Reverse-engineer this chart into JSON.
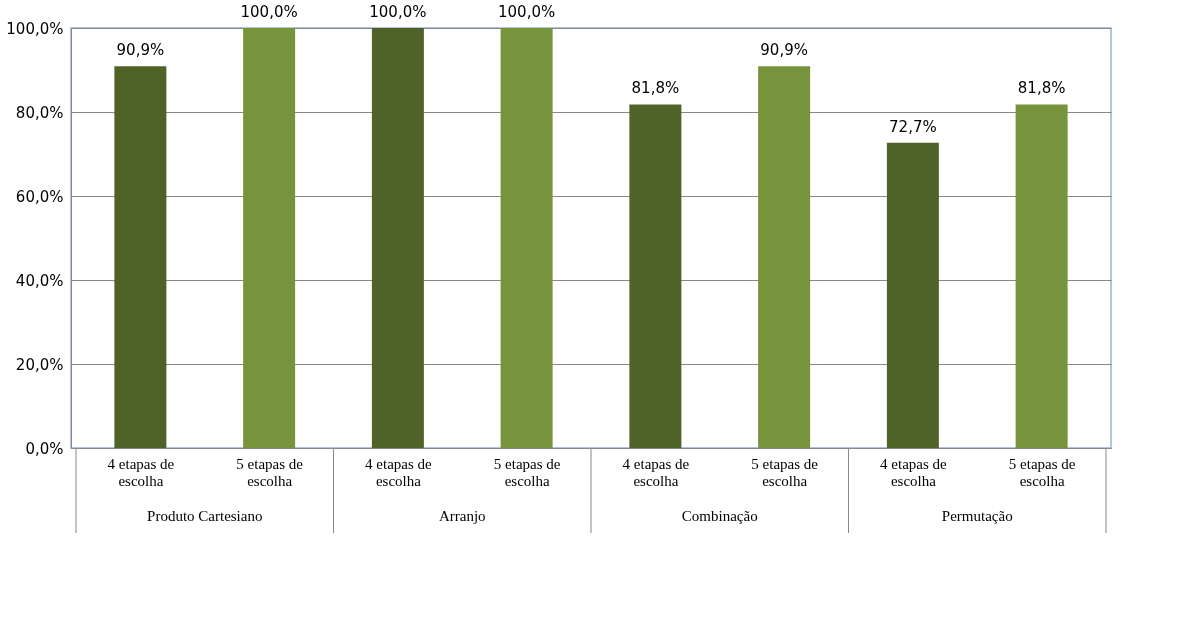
{
  "chart_data": {
    "type": "bar",
    "categories": [
      "4 etapas de escolha",
      "5 etapas de escolha",
      "4 etapas de escolha",
      "5 etapas de escolha",
      "4 etapas de escolha",
      "5 etapas de escolha",
      "4 etapas de escolha",
      "5 etapas de escolha"
    ],
    "values": [
      90.9,
      100,
      100,
      100,
      81.8,
      90.9,
      72.7,
      81.8
    ],
    "colors": [
      "#4f6228",
      "#77933c",
      "#4f6228",
      "#77933c",
      "#4f6228",
      "#77933c",
      "#4f6228",
      "#77933c"
    ],
    "value_labels": [
      "90,9%",
      "100,0%",
      "100,0%",
      "100,0%",
      "81,8%",
      "90,9%",
      "72,7%",
      "81,8%"
    ],
    "ylim": [
      0,
      100
    ],
    "yticks": [
      {
        "value": 0,
        "label": "0,0%"
      },
      {
        "value": 20,
        "label": "20,0%"
      },
      {
        "value": 40,
        "label": "40,0%"
      },
      {
        "value": 60,
        "label": "60,0%"
      },
      {
        "value": 80,
        "label": "80,0%"
      },
      {
        "value": 100,
        "label": "100,0%"
      }
    ],
    "grid": "y",
    "annotations": [
      "Produto Cartesiano",
      "Arranjo",
      "Combinação",
      "Permutação"
    ]
  }
}
